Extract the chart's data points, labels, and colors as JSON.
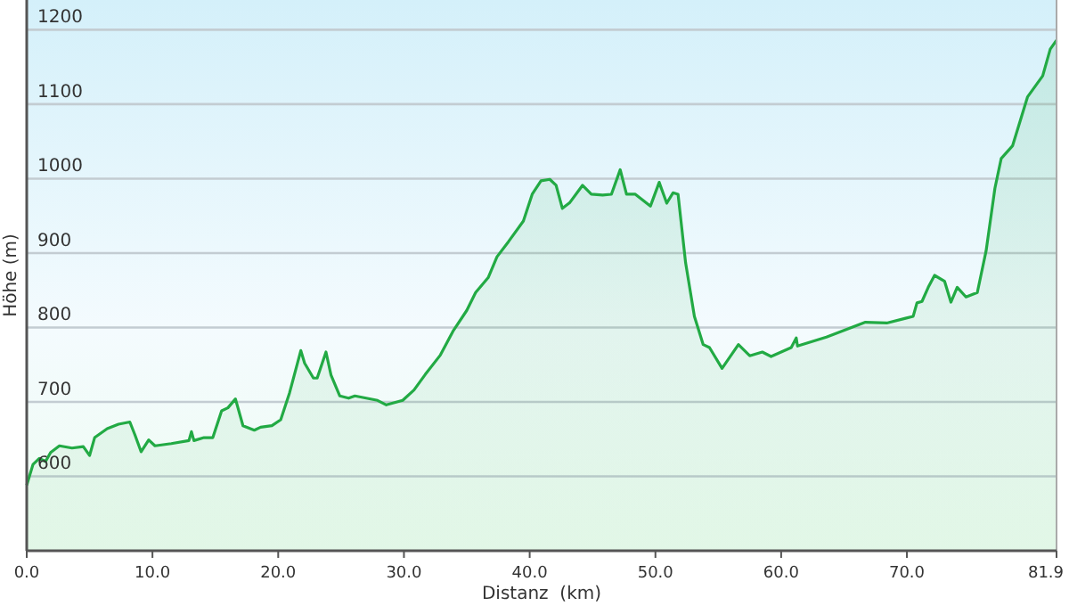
{
  "chart_data": {
    "type": "area",
    "xlabel": "Distanz  (km)",
    "ylabel": "Höhe (m)",
    "xlim": [
      0,
      81.9
    ],
    "ylim": [
      500,
      1240
    ],
    "xticks": [
      {
        "value": 0,
        "label": "0.0"
      },
      {
        "value": 10,
        "label": "10.0"
      },
      {
        "value": 20,
        "label": "20.0"
      },
      {
        "value": 30,
        "label": "30.0"
      },
      {
        "value": 40,
        "label": "40.0"
      },
      {
        "value": 50,
        "label": "50.0"
      },
      {
        "value": 60,
        "label": "60.0"
      },
      {
        "value": 70,
        "label": "70.0"
      },
      81.9
    ],
    "yticks": [
      600,
      700,
      800,
      900,
      1000,
      1100,
      1200
    ],
    "grid": "y",
    "series": [
      {
        "color": "#22aa44",
        "x": [
          0,
          0.5,
          1.0,
          1.5,
          1.9,
          2.6,
          3.6,
          4.5,
          5.0,
          5.4,
          6.4,
          7.3,
          8.2,
          8.6,
          9.1,
          9.7,
          10.2,
          11.5,
          12.9,
          13.1,
          13.3,
          14.1,
          14.8,
          15.5,
          16.0,
          16.6,
          17.2,
          18.1,
          18.6,
          19.5,
          20.2,
          20.9,
          21.8,
          22.1,
          22.8,
          23.1,
          23.8,
          24.2,
          24.9,
          25.6,
          26.1,
          27.9,
          28.6,
          29.9,
          30.8,
          31.7,
          32.9,
          33.9,
          35.0,
          35.7,
          36.7,
          37.4,
          38.3,
          39.5,
          40.2,
          40.9,
          41.6,
          42.1,
          42.6,
          43.2,
          43.9,
          44.2,
          44.9,
          45.8,
          46.5,
          47.2,
          47.7,
          48.4,
          49.6,
          50.3,
          50.9,
          51.4,
          51.8,
          52.4,
          53.1,
          53.8,
          54.3,
          55.3,
          56.6,
          57.5,
          58.5,
          59.2,
          60.8,
          61.2,
          61.3,
          63.6,
          66.7,
          68.4,
          70.5,
          70.8,
          71.2,
          71.7,
          72.2,
          73.0,
          73.5,
          74.0,
          74.7,
          75.6,
          76.3,
          77.0,
          77.5,
          78.4,
          79.6,
          80.8,
          81.4,
          81.9
        ],
        "values": [
          588,
          616,
          624,
          620,
          632,
          641,
          638,
          640,
          628,
          652,
          664,
          670,
          673,
          656,
          633,
          649,
          641,
          644,
          648,
          660,
          648,
          652,
          652,
          688,
          692,
          704,
          668,
          662,
          666,
          668,
          676,
          712,
          769,
          752,
          732,
          732,
          767,
          736,
          708,
          705,
          708,
          702,
          696,
          702,
          716,
          737,
          763,
          795,
          823,
          847,
          867,
          895,
          915,
          943,
          979,
          997,
          999,
          991,
          960,
          968,
          984,
          991,
          979,
          978,
          979,
          1012,
          979,
          979,
          963,
          995,
          967,
          981,
          979,
          887,
          815,
          777,
          773,
          745,
          777,
          762,
          767,
          761,
          773,
          786,
          775,
          787,
          807,
          806,
          815,
          833,
          835,
          854,
          870,
          862,
          834,
          854,
          841,
          847,
          903,
          987,
          1027,
          1044,
          1110,
          1138,
          1174,
          1186
        ]
      }
    ]
  }
}
